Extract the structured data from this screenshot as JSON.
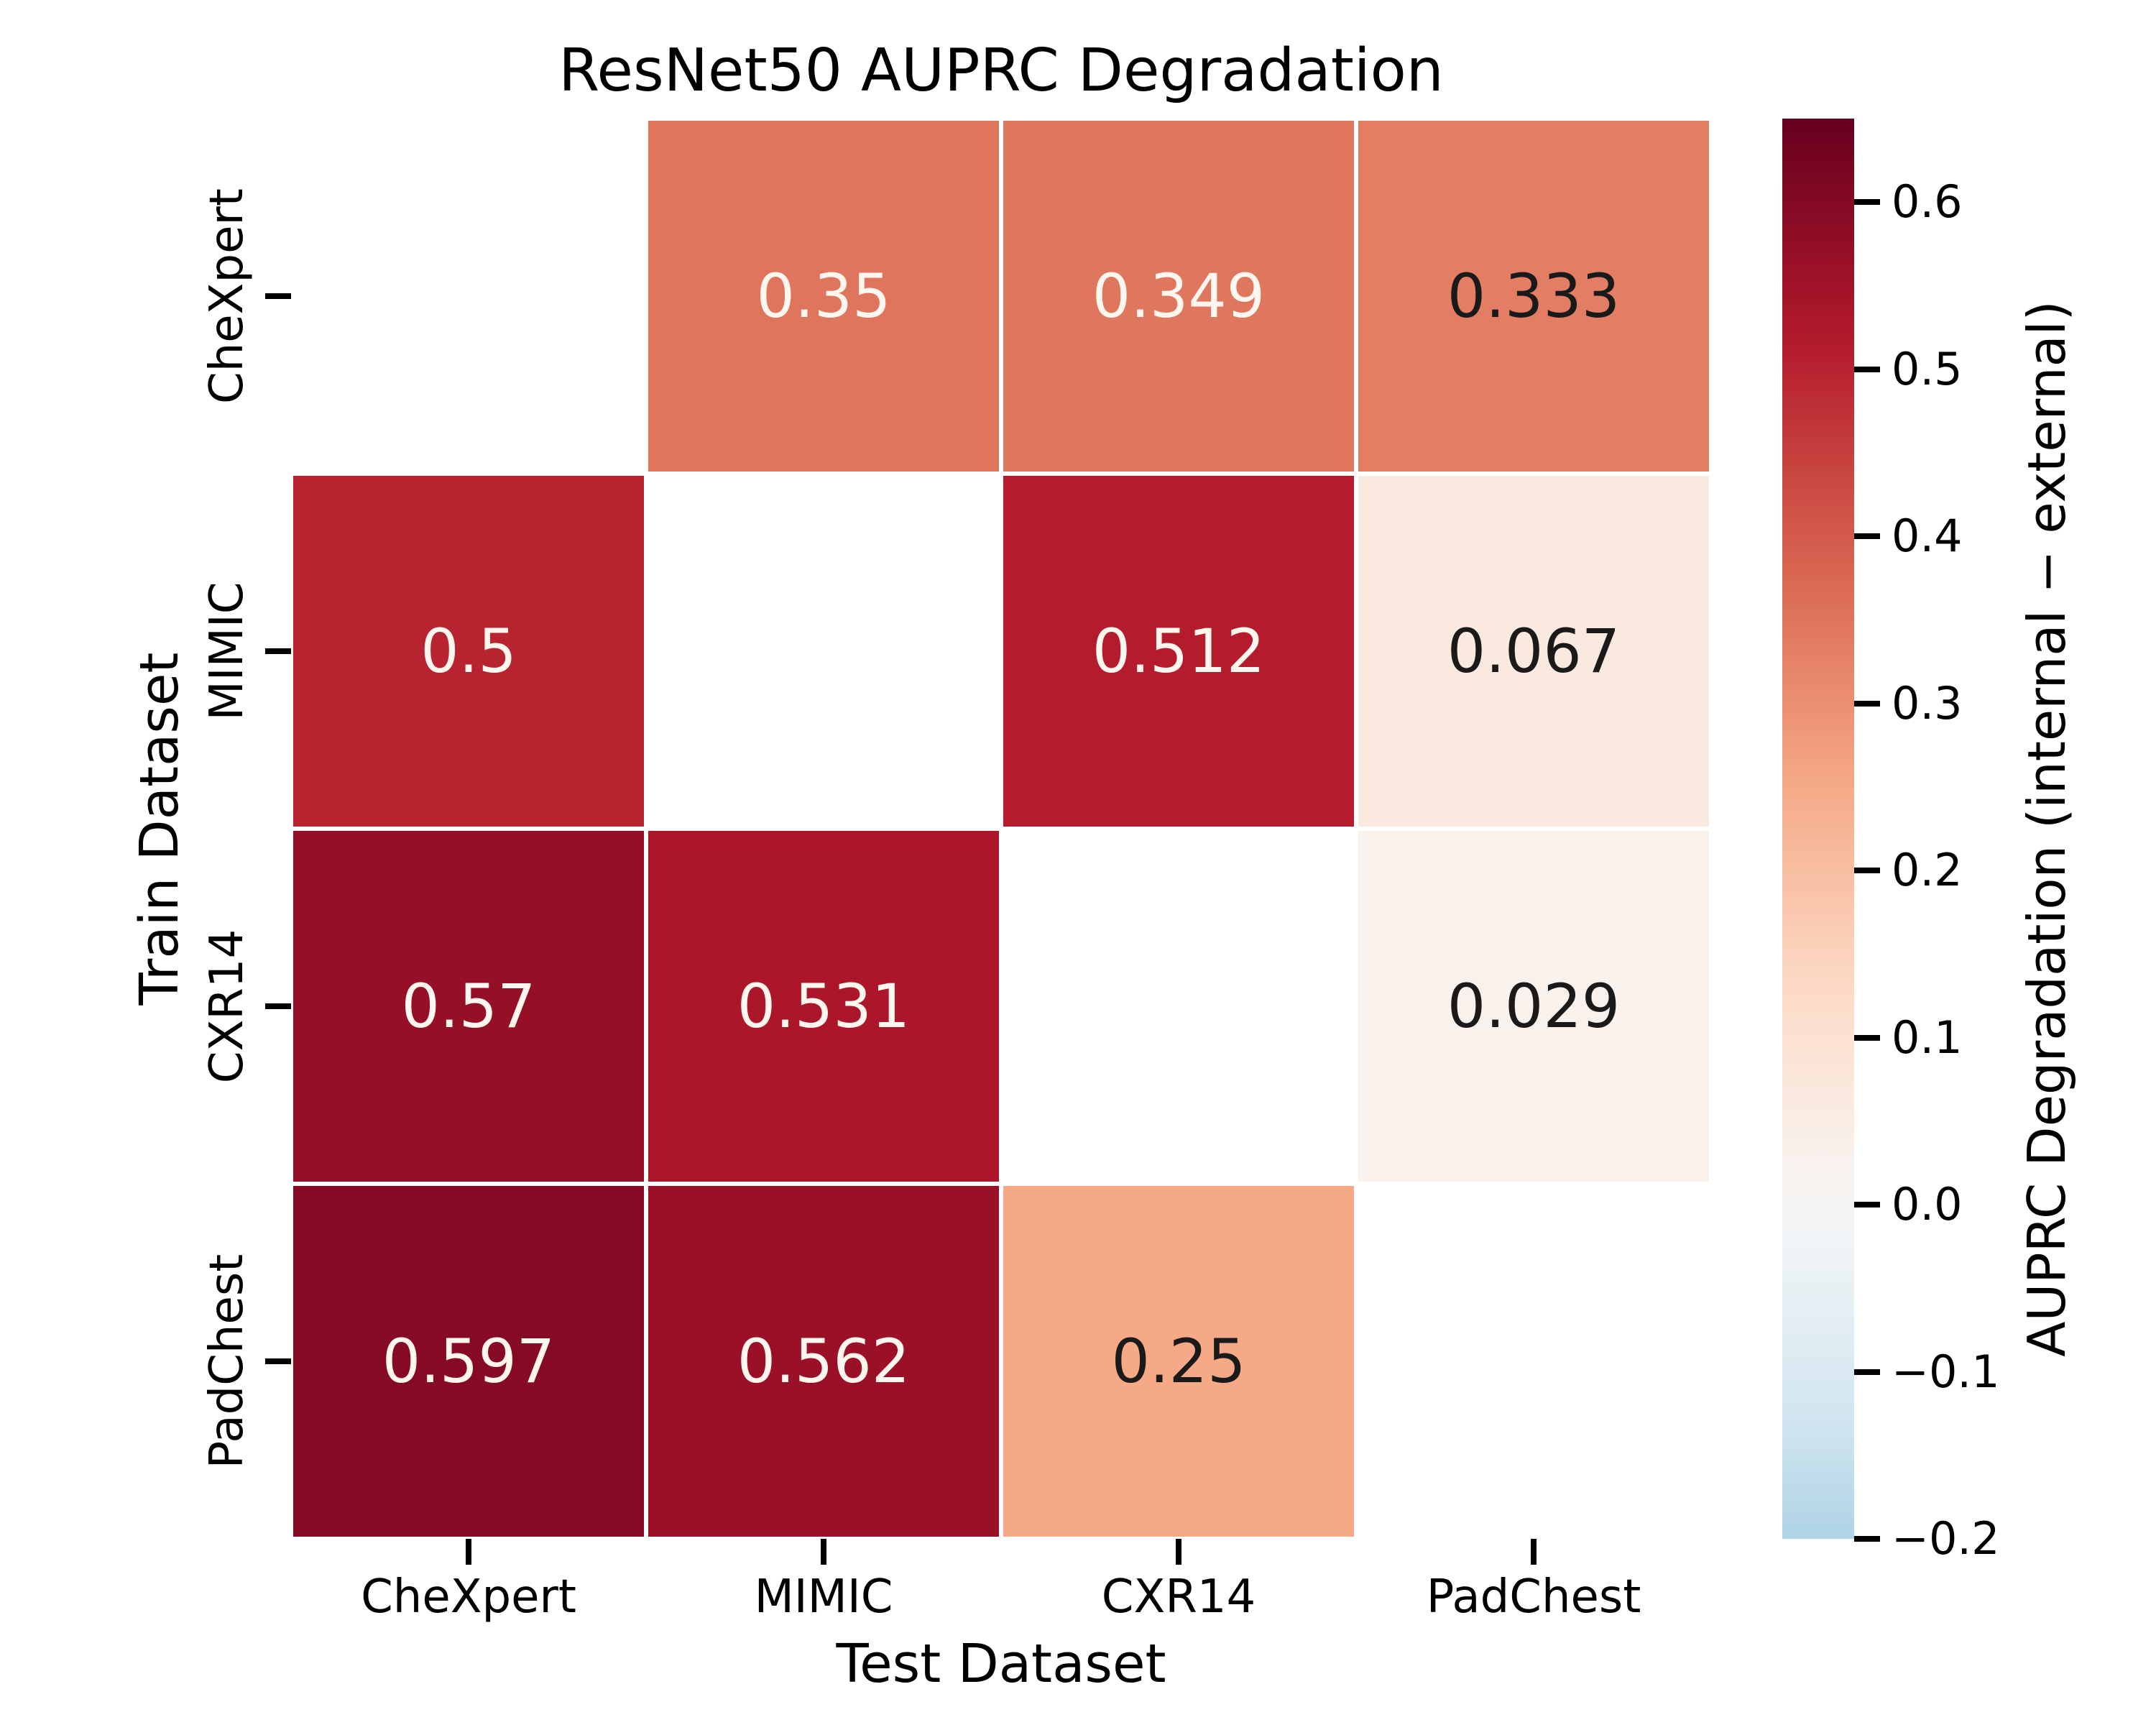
{
  "figure": {
    "background": "#ffffff"
  },
  "chart_data": {
    "type": "heatmap",
    "title": "ResNet50 AUPRC Degradation",
    "xlabel": "Test Dataset",
    "ylabel": "Train Dataset",
    "x_categories": [
      "CheXpert",
      "MIMIC",
      "CXR14",
      "PadChest"
    ],
    "y_categories": [
      "CheXpert",
      "MIMIC",
      "CXR14",
      "PadChest"
    ],
    "values": [
      [
        null,
        0.35,
        0.349,
        0.333
      ],
      [
        0.5,
        null,
        0.512,
        0.067
      ],
      [
        0.57,
        0.531,
        null,
        0.029
      ],
      [
        0.597,
        0.562,
        0.25,
        null
      ]
    ],
    "cell_labels": [
      [
        "",
        "0.35",
        "0.349",
        "0.333"
      ],
      [
        "0.5",
        "",
        "0.512",
        "0.067"
      ],
      [
        "0.57",
        "0.531",
        "",
        "0.029"
      ],
      [
        "0.597",
        "0.562",
        "0.25",
        ""
      ]
    ],
    "masked_cells_note": "diagonal cells are blank (white)",
    "grid": false,
    "annotation_color_on_dark": "#fff6ef",
    "annotation_color_on_light": "#1a1a1a",
    "colormap": {
      "name": "RdBu_r",
      "norm_vmin": -0.65,
      "norm_vmax": 0.65,
      "stops": [
        "#053061",
        "#2166ac",
        "#4393c3",
        "#92c5de",
        "#d1e5f0",
        "#f7f7f7",
        "#fddbc7",
        "#f4a582",
        "#d6604d",
        "#b2182b",
        "#67001f"
      ]
    },
    "colorbar": {
      "label": "AUPRC Degradation (internal − external)",
      "position": "right",
      "display_vmax": 0.65,
      "display_vmin": -0.2,
      "ticks": [
        0.6,
        0.5,
        0.4,
        0.3,
        0.2,
        0.1,
        0.0,
        -0.1,
        -0.2
      ],
      "tick_labels": [
        "0.6",
        "0.5",
        "0.4",
        "0.3",
        "0.2",
        "0.1",
        "0.0",
        "−0.1",
        "−0.2"
      ]
    }
  }
}
